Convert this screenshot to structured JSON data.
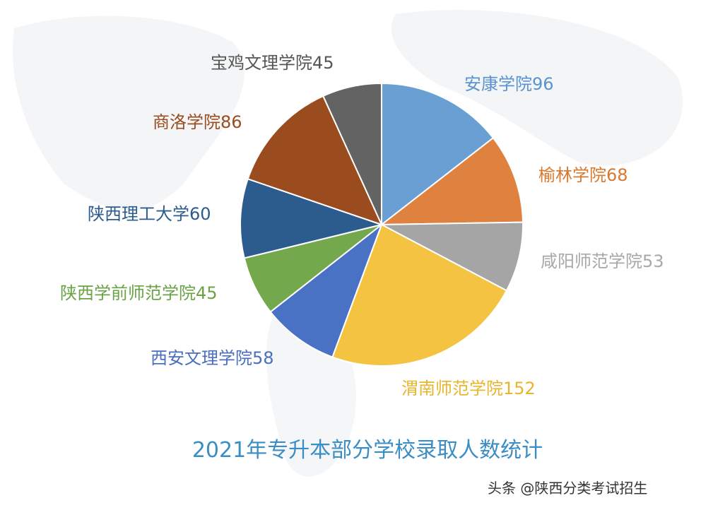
{
  "chart_data": {
    "type": "pie",
    "title": "2021年专升本部分学校录取人数统计",
    "start": "top",
    "direction": "clockwise",
    "categories": [
      "安康学院",
      "榆林学院",
      "咸阳师范学院",
      "渭南师范学院",
      "西安文理学院",
      "陕西学前师范学院",
      "陕西理工大学",
      "商洛学院",
      "宝鸡文理学院"
    ],
    "values": [
      96,
      68,
      53,
      152,
      58,
      45,
      60,
      86,
      45
    ],
    "colors": [
      "#6a9fd4",
      "#e0823f",
      "#a5a5a5",
      "#f5c342",
      "#4a72c4",
      "#74a84d",
      "#2c5b8e",
      "#9a4c1f",
      "#636363"
    ],
    "label_colors": [
      "#5a93cf",
      "#d9782f",
      "#a8a8a8",
      "#e8b52c",
      "#4a6fbf",
      "#6aa344",
      "#2c5b8e",
      "#9a4c1f",
      "#555555"
    ]
  },
  "watermark": "头条 @陕西分类考试招生"
}
